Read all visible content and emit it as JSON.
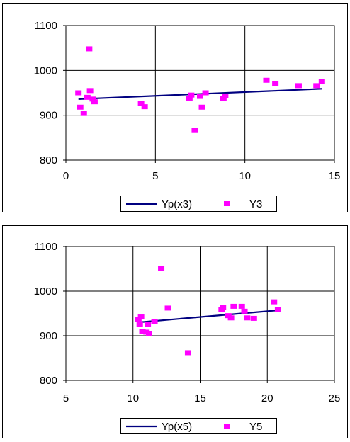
{
  "chart_data": [
    {
      "type": "scatter",
      "title": "",
      "xlabel": "",
      "ylabel": "",
      "xlim": [
        0,
        15
      ],
      "ylim": [
        800,
        1100
      ],
      "xticks": [
        0,
        5,
        10,
        15
      ],
      "yticks": [
        800,
        900,
        1000,
        1100
      ],
      "grid": true,
      "legend_position": "bottom",
      "series": [
        {
          "name": "Yp(x3)",
          "type": "line",
          "color": "#000080",
          "x": [
            0.7,
            14.3
          ],
          "y": [
            936,
            959
          ]
        },
        {
          "name": "Y3",
          "type": "scatter",
          "color": "#ff00ff",
          "x": [
            0.7,
            0.8,
            1.0,
            1.2,
            1.3,
            1.35,
            1.5,
            1.6,
            4.2,
            4.4,
            6.9,
            7.0,
            7.2,
            7.5,
            7.6,
            7.8,
            8.8,
            8.9,
            11.2,
            11.7,
            13.0,
            14.0,
            14.3
          ],
          "y": [
            950,
            918,
            904,
            940,
            1048,
            955,
            936,
            930,
            927,
            919,
            937,
            945,
            866,
            942,
            918,
            950,
            937,
            943,
            978,
            971,
            966,
            966,
            975
          ]
        }
      ]
    },
    {
      "type": "scatter",
      "title": "",
      "xlabel": "",
      "ylabel": "",
      "xlim": [
        5,
        25
      ],
      "ylim": [
        800,
        1100
      ],
      "xticks": [
        5,
        10,
        15,
        20,
        25
      ],
      "yticks": [
        800,
        900,
        1000,
        1100
      ],
      "grid": true,
      "legend_position": "bottom",
      "series": [
        {
          "name": "Yp(x5)",
          "type": "line",
          "color": "#000080",
          "x": [
            10.4,
            20.8
          ],
          "y": [
            930,
            957
          ]
        },
        {
          "name": "Y5",
          "type": "scatter",
          "color": "#ff00ff",
          "x": [
            10.4,
            10.5,
            10.6,
            10.7,
            11.0,
            11.1,
            11.2,
            11.6,
            12.1,
            12.6,
            14.1,
            16.6,
            16.7,
            17.1,
            17.3,
            17.5,
            18.1,
            18.3,
            18.5,
            19.0,
            20.5,
            20.8
          ],
          "y": [
            937,
            925,
            942,
            910,
            908,
            925,
            905,
            932,
            1050,
            962,
            862,
            958,
            963,
            945,
            940,
            966,
            966,
            955,
            940,
            939,
            976,
            958
          ]
        }
      ]
    }
  ]
}
